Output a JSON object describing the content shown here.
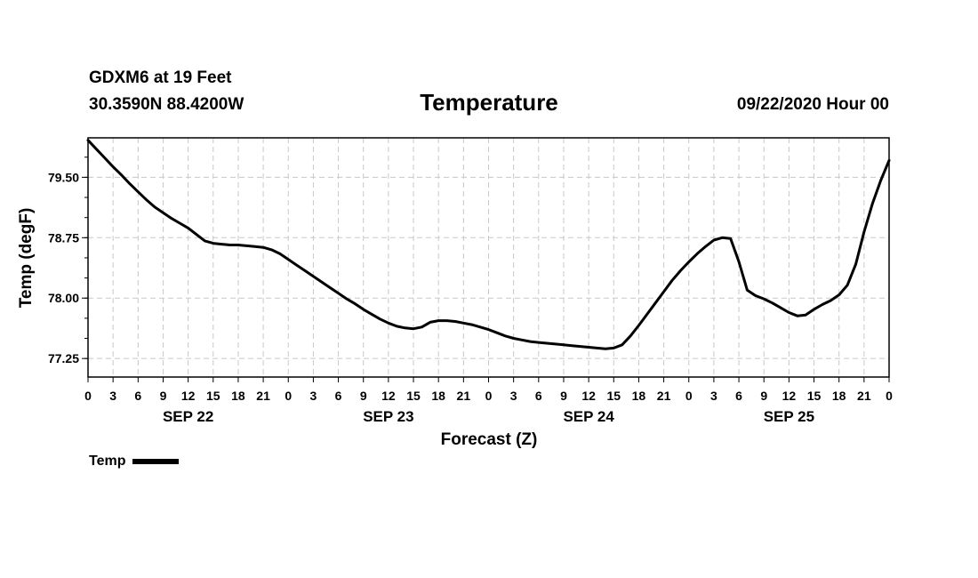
{
  "header": {
    "station": "GDXM6 at 19 Feet",
    "coords": "30.3590N 88.4200W",
    "title": "Temperature",
    "run": "09/22/2020 Hour 00"
  },
  "legend": {
    "label": "Temp"
  },
  "chart_data": {
    "type": "line",
    "title": "Temperature",
    "xlabel": "Forecast (Z)",
    "ylabel": "Temp (degF)",
    "x_units": "hours from 09/22/2020 00Z",
    "xlim": [
      0,
      96
    ],
    "ylim": [
      77.02,
      79.99
    ],
    "yticks": [
      77.25,
      78.0,
      78.75,
      79.5
    ],
    "ytick_labels": [
      "77.25",
      "78.00",
      "78.75",
      "79.50"
    ],
    "xtick_labels": [
      "0",
      "3",
      "6",
      "9",
      "12",
      "15",
      "18",
      "21",
      "0",
      "3",
      "6",
      "9",
      "12",
      "15",
      "18",
      "21",
      "0",
      "3",
      "6",
      "9",
      "12",
      "15",
      "18",
      "21",
      "0",
      "3",
      "6",
      "9",
      "12",
      "15",
      "18",
      "21",
      "0"
    ],
    "day_labels": [
      {
        "label": "SEP 22",
        "hour": 12
      },
      {
        "label": "SEP 23",
        "hour": 36
      },
      {
        "label": "SEP 24",
        "hour": 60
      },
      {
        "label": "SEP 25",
        "hour": 84
      }
    ],
    "grid": true,
    "series": [
      {
        "name": "Temp",
        "color": "#000000",
        "points": [
          [
            0,
            79.96
          ],
          [
            1,
            79.85
          ],
          [
            2,
            79.74
          ],
          [
            3,
            79.63
          ],
          [
            4,
            79.53
          ],
          [
            5,
            79.42
          ],
          [
            6,
            79.32
          ],
          [
            7,
            79.22
          ],
          [
            8,
            79.13
          ],
          [
            9,
            79.06
          ],
          [
            10,
            78.99
          ],
          [
            11,
            78.93
          ],
          [
            12,
            78.87
          ],
          [
            13,
            78.79
          ],
          [
            14,
            78.71
          ],
          [
            15,
            78.68
          ],
          [
            16,
            78.67
          ],
          [
            17,
            78.66
          ],
          [
            18,
            78.66
          ],
          [
            19,
            78.65
          ],
          [
            20,
            78.64
          ],
          [
            21,
            78.63
          ],
          [
            22,
            78.6
          ],
          [
            23,
            78.55
          ],
          [
            24,
            78.48
          ],
          [
            25,
            78.41
          ],
          [
            26,
            78.34
          ],
          [
            27,
            78.27
          ],
          [
            28,
            78.2
          ],
          [
            29,
            78.13
          ],
          [
            30,
            78.06
          ],
          [
            31,
            77.99
          ],
          [
            32,
            77.93
          ],
          [
            33,
            77.86
          ],
          [
            34,
            77.8
          ],
          [
            35,
            77.74
          ],
          [
            36,
            77.69
          ],
          [
            37,
            77.65
          ],
          [
            38,
            77.63
          ],
          [
            39,
            77.62
          ],
          [
            40,
            77.64
          ],
          [
            41,
            77.7
          ],
          [
            42,
            77.72
          ],
          [
            43,
            77.72
          ],
          [
            44,
            77.71
          ],
          [
            45,
            77.69
          ],
          [
            46,
            77.67
          ],
          [
            47,
            77.64
          ],
          [
            48,
            77.61
          ],
          [
            49,
            77.57
          ],
          [
            50,
            77.53
          ],
          [
            51,
            77.5
          ],
          [
            52,
            77.48
          ],
          [
            53,
            77.46
          ],
          [
            54,
            77.45
          ],
          [
            55,
            77.44
          ],
          [
            56,
            77.43
          ],
          [
            57,
            77.42
          ],
          [
            58,
            77.41
          ],
          [
            59,
            77.4
          ],
          [
            60,
            77.39
          ],
          [
            61,
            77.38
          ],
          [
            62,
            77.37
          ],
          [
            63,
            77.38
          ],
          [
            64,
            77.42
          ],
          [
            65,
            77.53
          ],
          [
            66,
            77.66
          ],
          [
            67,
            77.8
          ],
          [
            68,
            77.94
          ],
          [
            69,
            78.08
          ],
          [
            70,
            78.22
          ],
          [
            71,
            78.34
          ],
          [
            72,
            78.45
          ],
          [
            73,
            78.55
          ],
          [
            74,
            78.64
          ],
          [
            75,
            78.72
          ],
          [
            76,
            78.75
          ],
          [
            77,
            78.74
          ],
          [
            78,
            78.45
          ],
          [
            79,
            78.1
          ],
          [
            80,
            78.03
          ],
          [
            81,
            77.99
          ],
          [
            82,
            77.94
          ],
          [
            83,
            77.88
          ],
          [
            84,
            77.82
          ],
          [
            85,
            77.78
          ],
          [
            86,
            77.79
          ],
          [
            87,
            77.86
          ],
          [
            88,
            77.92
          ],
          [
            89,
            77.97
          ],
          [
            90,
            78.04
          ],
          [
            91,
            78.16
          ],
          [
            92,
            78.42
          ],
          [
            93,
            78.82
          ],
          [
            94,
            79.17
          ],
          [
            95,
            79.46
          ],
          [
            96,
            79.71
          ]
        ]
      }
    ]
  }
}
